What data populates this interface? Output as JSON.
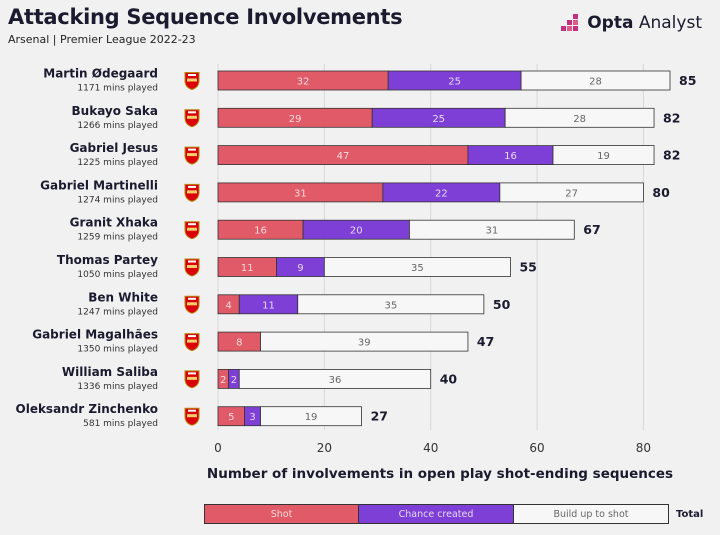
{
  "header": {
    "title": "Attacking Sequence Involvements",
    "subtitle": "Arsenal | Premier League 2022-23",
    "brand_prefix": "Opta",
    "brand_suffix": "Analyst"
  },
  "colors": {
    "shot": "#e05a67",
    "chance_created": "#7e3fd6",
    "build_up": "#f7f7f7",
    "background": "#f1f1f1",
    "text": "#1b1b2f",
    "brand_accent": "#c2307e"
  },
  "legend": {
    "items": [
      "Shot",
      "Chance created",
      "Build up to shot"
    ],
    "total_label": "Total"
  },
  "chart_data": {
    "type": "bar",
    "orientation": "horizontal",
    "stacked": true,
    "xlabel": "Number of involvements in open play shot-ending sequences",
    "xlim": [
      0,
      85
    ],
    "xticks": [
      0,
      20,
      40,
      60,
      80
    ],
    "grid": true,
    "categories": [
      {
        "name": "Martin Ødegaard",
        "note": "1171 mins played",
        "total": 85
      },
      {
        "name": "Bukayo Saka",
        "note": "1266 mins played",
        "total": 82
      },
      {
        "name": "Gabriel Jesus",
        "note": "1225 mins played",
        "total": 82
      },
      {
        "name": "Gabriel Martinelli",
        "note": "1274 mins played",
        "total": 80
      },
      {
        "name": "Granit Xhaka",
        "note": "1259 mins played",
        "total": 67
      },
      {
        "name": "Thomas Partey",
        "note": "1050 mins played",
        "total": 55
      },
      {
        "name": "Ben White",
        "note": "1247 mins played",
        "total": 50
      },
      {
        "name": "Gabriel Magalhães",
        "note": "1350 mins played",
        "total": 47
      },
      {
        "name": "William Saliba",
        "note": "1336 mins played",
        "total": 40
      },
      {
        "name": "Oleksandr Zinchenko",
        "note": "581 mins played",
        "total": 27
      }
    ],
    "series": [
      {
        "name": "Shot",
        "values": [
          32,
          29,
          47,
          31,
          16,
          11,
          4,
          8,
          2,
          5
        ]
      },
      {
        "name": "Chance created",
        "values": [
          25,
          25,
          16,
          22,
          20,
          9,
          11,
          0,
          2,
          3
        ]
      },
      {
        "name": "Build up to shot",
        "values": [
          28,
          28,
          19,
          27,
          31,
          35,
          35,
          39,
          36,
          19
        ]
      }
    ]
  }
}
